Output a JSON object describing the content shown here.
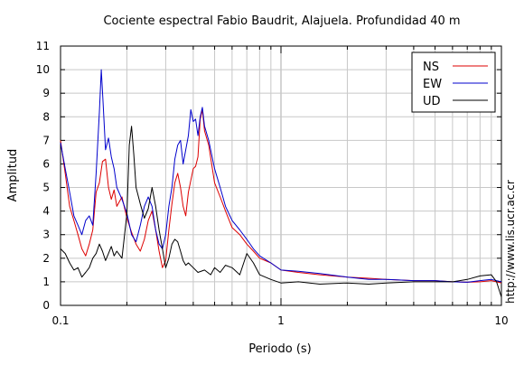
{
  "chart_data": {
    "type": "line",
    "title": "Cociente espectral Fabio Baudrit, Alajuela. Profundidad 40 m",
    "xlabel": "Periodo (s)",
    "ylabel": "Amplitud",
    "x_scale": "log",
    "xlim": [
      0.1,
      10
    ],
    "ylim": [
      0,
      11
    ],
    "x_ticks": [
      {
        "value": 0.1,
        "label": "0.1"
      },
      {
        "value": 1,
        "label": "1"
      },
      {
        "value": 10,
        "label": "10"
      }
    ],
    "y_ticks": [
      "0",
      "1",
      "2",
      "3",
      "4",
      "5",
      "6",
      "7",
      "8",
      "9",
      "10",
      "11"
    ],
    "grid": true,
    "legend": "top-right",
    "watermark": "http://www.lis.ucr.ac.cr",
    "series": [
      {
        "name": "NS",
        "color": "#dd0000",
        "points": [
          [
            0.1,
            7.0
          ],
          [
            0.105,
            5.6
          ],
          [
            0.11,
            4.2
          ],
          [
            0.115,
            3.6
          ],
          [
            0.12,
            3.0
          ],
          [
            0.125,
            2.4
          ],
          [
            0.13,
            2.1
          ],
          [
            0.135,
            2.6
          ],
          [
            0.14,
            3.2
          ],
          [
            0.145,
            4.8
          ],
          [
            0.15,
            5.2
          ],
          [
            0.155,
            6.1
          ],
          [
            0.16,
            6.2
          ],
          [
            0.165,
            5.0
          ],
          [
            0.17,
            4.5
          ],
          [
            0.175,
            4.9
          ],
          [
            0.18,
            4.2
          ],
          [
            0.19,
            4.6
          ],
          [
            0.2,
            3.7
          ],
          [
            0.21,
            3.1
          ],
          [
            0.22,
            2.6
          ],
          [
            0.23,
            2.3
          ],
          [
            0.24,
            2.8
          ],
          [
            0.25,
            3.6
          ],
          [
            0.26,
            4.0
          ],
          [
            0.27,
            3.2
          ],
          [
            0.28,
            2.3
          ],
          [
            0.29,
            1.6
          ],
          [
            0.3,
            1.9
          ],
          [
            0.31,
            3.2
          ],
          [
            0.32,
            4.3
          ],
          [
            0.33,
            5.2
          ],
          [
            0.34,
            5.6
          ],
          [
            0.35,
            5.0
          ],
          [
            0.36,
            4.2
          ],
          [
            0.37,
            3.8
          ],
          [
            0.38,
            4.8
          ],
          [
            0.39,
            5.3
          ],
          [
            0.4,
            5.8
          ],
          [
            0.41,
            5.9
          ],
          [
            0.42,
            6.3
          ],
          [
            0.43,
            7.9
          ],
          [
            0.44,
            8.3
          ],
          [
            0.45,
            7.4
          ],
          [
            0.47,
            6.8
          ],
          [
            0.5,
            5.2
          ],
          [
            0.53,
            4.6
          ],
          [
            0.56,
            4.0
          ],
          [
            0.6,
            3.3
          ],
          [
            0.65,
            3.0
          ],
          [
            0.7,
            2.6
          ],
          [
            0.75,
            2.3
          ],
          [
            0.8,
            2.0
          ],
          [
            0.9,
            1.8
          ],
          [
            1.0,
            1.5
          ],
          [
            1.2,
            1.4
          ],
          [
            1.5,
            1.3
          ],
          [
            2.0,
            1.2
          ],
          [
            2.5,
            1.15
          ],
          [
            3.0,
            1.1
          ],
          [
            4.0,
            1.05
          ],
          [
            5.0,
            1.05
          ],
          [
            6.0,
            1.0
          ],
          [
            7.0,
            0.98
          ],
          [
            8.0,
            1.0
          ],
          [
            9.0,
            1.05
          ],
          [
            10.0,
            0.95
          ]
        ]
      },
      {
        "name": "EW",
        "color": "#0000cc",
        "points": [
          [
            0.1,
            6.9
          ],
          [
            0.105,
            5.8
          ],
          [
            0.11,
            4.8
          ],
          [
            0.115,
            3.8
          ],
          [
            0.12,
            3.4
          ],
          [
            0.125,
            3.0
          ],
          [
            0.13,
            3.6
          ],
          [
            0.135,
            3.8
          ],
          [
            0.14,
            3.4
          ],
          [
            0.145,
            5.6
          ],
          [
            0.15,
            8.2
          ],
          [
            0.153,
            10.0
          ],
          [
            0.156,
            8.6
          ],
          [
            0.16,
            6.6
          ],
          [
            0.165,
            7.1
          ],
          [
            0.17,
            6.3
          ],
          [
            0.175,
            5.8
          ],
          [
            0.18,
            5.0
          ],
          [
            0.19,
            4.5
          ],
          [
            0.2,
            3.9
          ],
          [
            0.21,
            3.0
          ],
          [
            0.22,
            2.7
          ],
          [
            0.23,
            3.4
          ],
          [
            0.24,
            4.2
          ],
          [
            0.25,
            4.6
          ],
          [
            0.26,
            4.2
          ],
          [
            0.27,
            3.2
          ],
          [
            0.28,
            2.6
          ],
          [
            0.29,
            2.4
          ],
          [
            0.3,
            3.0
          ],
          [
            0.31,
            4.2
          ],
          [
            0.32,
            5.0
          ],
          [
            0.33,
            6.2
          ],
          [
            0.34,
            6.8
          ],
          [
            0.35,
            7.0
          ],
          [
            0.36,
            6.0
          ],
          [
            0.37,
            6.6
          ],
          [
            0.38,
            7.2
          ],
          [
            0.39,
            8.3
          ],
          [
            0.4,
            7.8
          ],
          [
            0.41,
            7.9
          ],
          [
            0.42,
            7.2
          ],
          [
            0.43,
            8.0
          ],
          [
            0.44,
            8.4
          ],
          [
            0.45,
            7.6
          ],
          [
            0.47,
            7.0
          ],
          [
            0.5,
            5.8
          ],
          [
            0.53,
            5.0
          ],
          [
            0.56,
            4.2
          ],
          [
            0.6,
            3.6
          ],
          [
            0.65,
            3.2
          ],
          [
            0.7,
            2.8
          ],
          [
            0.75,
            2.4
          ],
          [
            0.8,
            2.1
          ],
          [
            0.9,
            1.8
          ],
          [
            1.0,
            1.5
          ],
          [
            1.2,
            1.45
          ],
          [
            1.5,
            1.35
          ],
          [
            2.0,
            1.2
          ],
          [
            2.5,
            1.1
          ],
          [
            3.0,
            1.1
          ],
          [
            4.0,
            1.05
          ],
          [
            5.0,
            1.05
          ],
          [
            6.0,
            1.0
          ],
          [
            7.0,
            0.98
          ],
          [
            8.0,
            1.05
          ],
          [
            9.0,
            1.1
          ],
          [
            10.0,
            1.0
          ]
        ]
      },
      {
        "name": "UD",
        "color": "#000000",
        "points": [
          [
            0.1,
            2.4
          ],
          [
            0.105,
            2.2
          ],
          [
            0.11,
            1.8
          ],
          [
            0.115,
            1.5
          ],
          [
            0.12,
            1.6
          ],
          [
            0.125,
            1.2
          ],
          [
            0.13,
            1.4
          ],
          [
            0.135,
            1.6
          ],
          [
            0.14,
            2.0
          ],
          [
            0.145,
            2.2
          ],
          [
            0.15,
            2.6
          ],
          [
            0.155,
            2.3
          ],
          [
            0.16,
            1.9
          ],
          [
            0.165,
            2.2
          ],
          [
            0.17,
            2.5
          ],
          [
            0.175,
            2.1
          ],
          [
            0.18,
            2.3
          ],
          [
            0.19,
            2.0
          ],
          [
            0.2,
            3.9
          ],
          [
            0.205,
            6.8
          ],
          [
            0.21,
            7.6
          ],
          [
            0.215,
            6.4
          ],
          [
            0.22,
            5.0
          ],
          [
            0.23,
            4.3
          ],
          [
            0.24,
            3.7
          ],
          [
            0.25,
            4.1
          ],
          [
            0.26,
            5.0
          ],
          [
            0.27,
            4.2
          ],
          [
            0.28,
            3.2
          ],
          [
            0.29,
            2.4
          ],
          [
            0.3,
            1.6
          ],
          [
            0.31,
            2.0
          ],
          [
            0.32,
            2.6
          ],
          [
            0.33,
            2.8
          ],
          [
            0.34,
            2.7
          ],
          [
            0.35,
            2.3
          ],
          [
            0.36,
            1.9
          ],
          [
            0.37,
            1.7
          ],
          [
            0.38,
            1.8
          ],
          [
            0.4,
            1.6
          ],
          [
            0.42,
            1.4
          ],
          [
            0.45,
            1.5
          ],
          [
            0.48,
            1.3
          ],
          [
            0.5,
            1.6
          ],
          [
            0.53,
            1.4
          ],
          [
            0.56,
            1.7
          ],
          [
            0.6,
            1.6
          ],
          [
            0.65,
            1.3
          ],
          [
            0.7,
            2.2
          ],
          [
            0.75,
            1.8
          ],
          [
            0.8,
            1.3
          ],
          [
            0.9,
            1.1
          ],
          [
            1.0,
            0.95
          ],
          [
            1.2,
            1.0
          ],
          [
            1.5,
            0.9
          ],
          [
            2.0,
            0.95
          ],
          [
            2.5,
            0.9
          ],
          [
            3.0,
            0.95
          ],
          [
            4.0,
            1.0
          ],
          [
            5.0,
            1.0
          ],
          [
            6.0,
            1.0
          ],
          [
            7.0,
            1.1
          ],
          [
            8.0,
            1.25
          ],
          [
            9.0,
            1.3
          ],
          [
            9.5,
            1.0
          ],
          [
            10.0,
            0.35
          ]
        ]
      }
    ]
  }
}
